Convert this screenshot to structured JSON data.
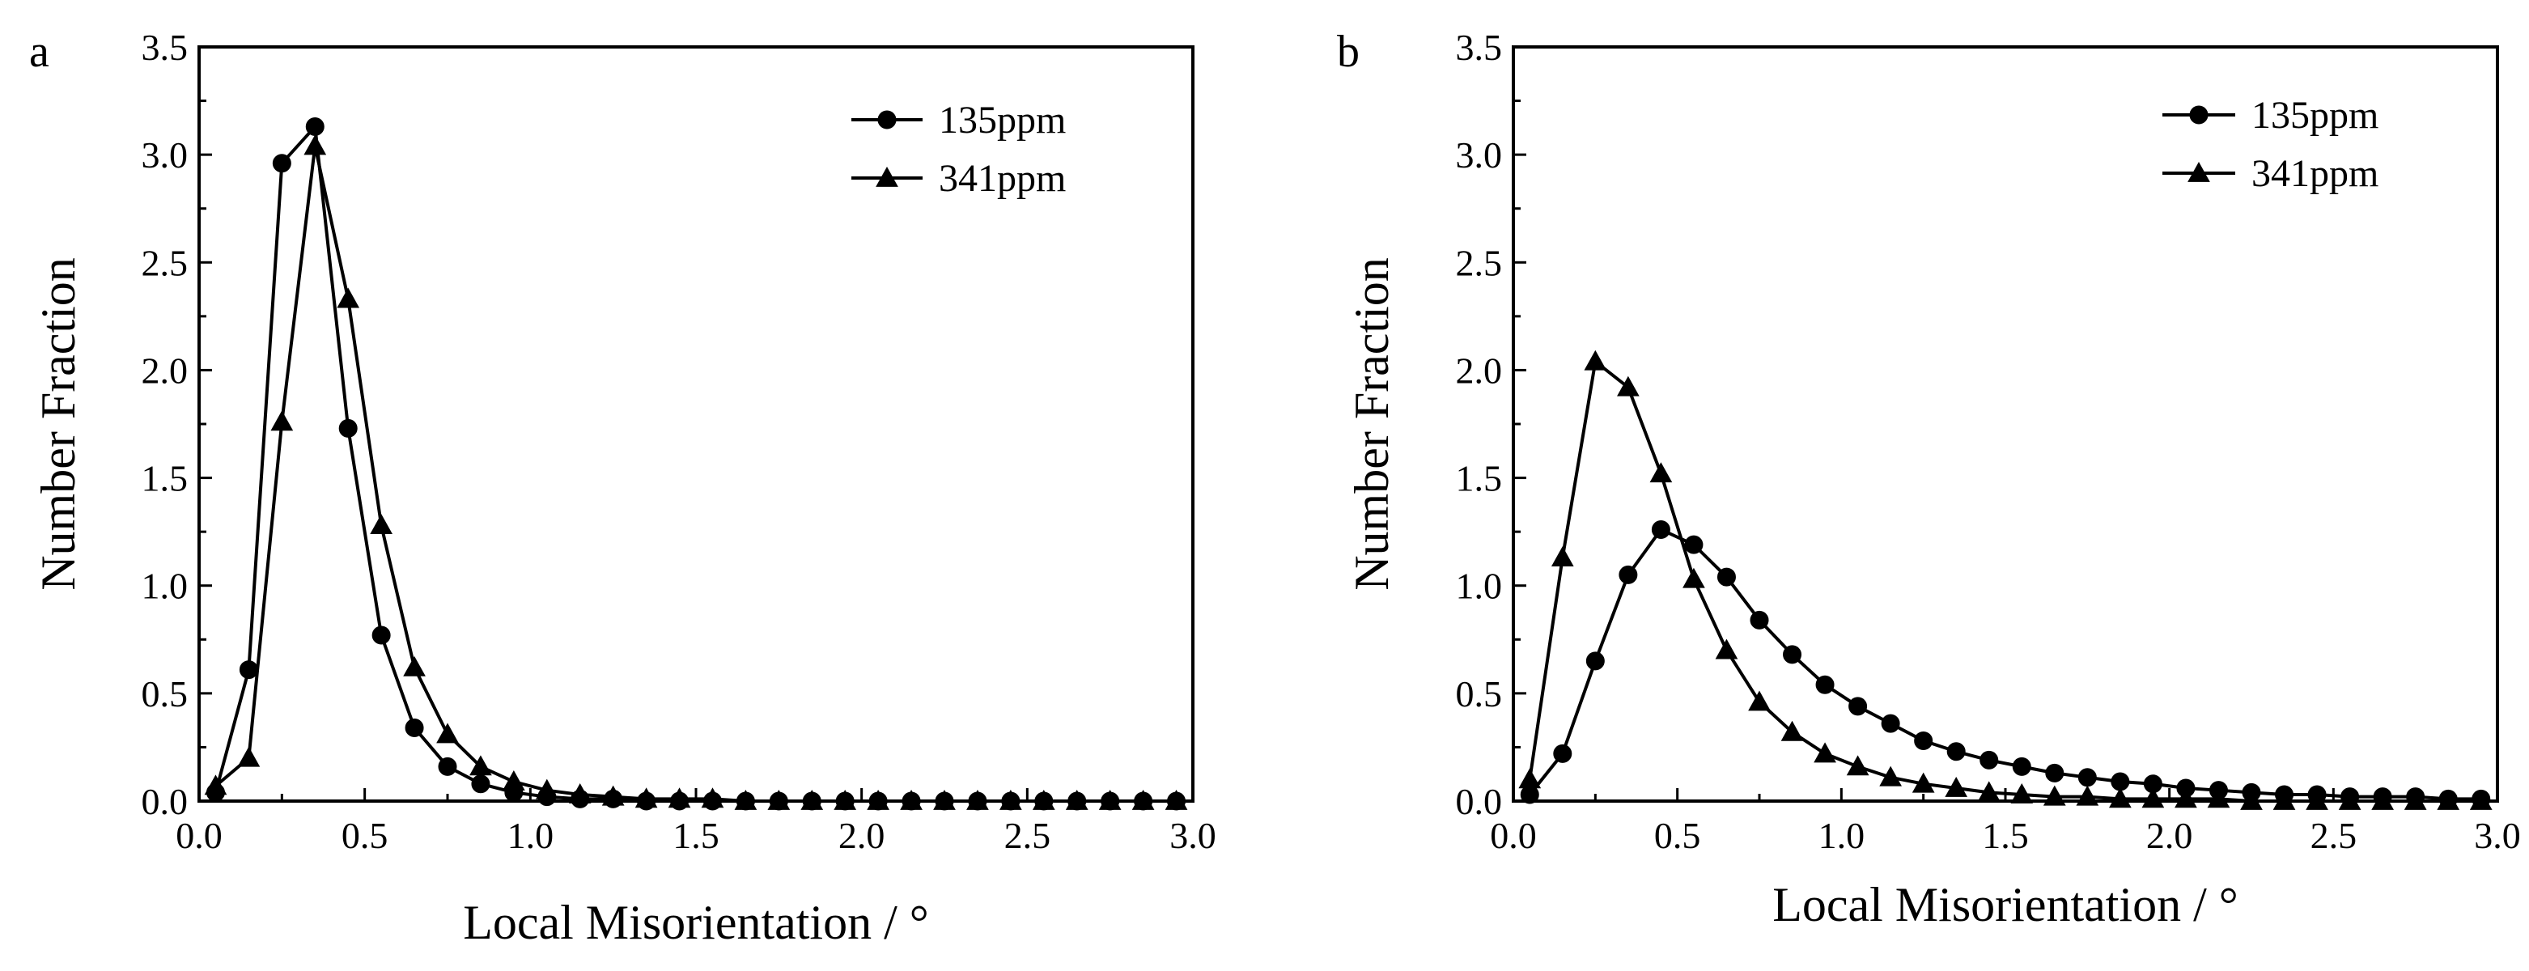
{
  "chart_data": [
    {
      "panel": "a",
      "type": "line",
      "xlabel": "Local Misorientation / °",
      "ylabel": "Number Fraction",
      "xlim": [
        0,
        3.0
      ],
      "ylim": [
        0,
        3.5
      ],
      "xticks": [
        "0.0",
        "0.5",
        "1.0",
        "1.5",
        "2.0",
        "2.5",
        "3.0"
      ],
      "yticks": [
        "0.0",
        "0.5",
        "1.0",
        "1.5",
        "2.0",
        "2.5",
        "3.0",
        "3.5"
      ],
      "legend_position": "top-right",
      "x": [
        0.05,
        0.15,
        0.25,
        0.35,
        0.45,
        0.55,
        0.65,
        0.75,
        0.85,
        0.95,
        1.05,
        1.15,
        1.25,
        1.35,
        1.45,
        1.55,
        1.65,
        1.75,
        1.85,
        1.95,
        2.05,
        2.15,
        2.25,
        2.35,
        2.45,
        2.55,
        2.65,
        2.75,
        2.85,
        2.95
      ],
      "series": [
        {
          "name": "135ppm",
          "marker": "circle",
          "values": [
            0.04,
            0.61,
            2.96,
            3.13,
            1.73,
            0.77,
            0.34,
            0.16,
            0.08,
            0.04,
            0.02,
            0.01,
            0.01,
            0.0,
            0.0,
            0.0,
            0.0,
            0.0,
            0.0,
            0.0,
            0.0,
            0.0,
            0.0,
            0.0,
            0.0,
            0.0,
            0.0,
            0.0,
            0.0,
            0.0
          ]
        },
        {
          "name": "341ppm",
          "marker": "triangle",
          "values": [
            0.07,
            0.2,
            1.76,
            3.04,
            2.33,
            1.28,
            0.62,
            0.31,
            0.16,
            0.09,
            0.05,
            0.03,
            0.02,
            0.01,
            0.01,
            0.01,
            0.0,
            0.0,
            0.0,
            0.0,
            0.0,
            0.0,
            0.0,
            0.0,
            0.0,
            0.0,
            0.0,
            0.0,
            0.0,
            0.0
          ]
        }
      ]
    },
    {
      "panel": "b",
      "type": "line",
      "xlabel": "Local Misorientation / °",
      "ylabel": "Number Fraction",
      "xlim": [
        0,
        3.0
      ],
      "ylim": [
        0,
        3.5
      ],
      "xticks": [
        "0.0",
        "0.5",
        "1.0",
        "1.5",
        "2.0",
        "2.5",
        "3.0"
      ],
      "yticks": [
        "0.0",
        "0.5",
        "1.0",
        "1.5",
        "2.0",
        "2.5",
        "3.0",
        "3.5"
      ],
      "legend_position": "top-right",
      "x": [
        0.05,
        0.15,
        0.25,
        0.35,
        0.45,
        0.55,
        0.65,
        0.75,
        0.85,
        0.95,
        1.05,
        1.15,
        1.25,
        1.35,
        1.45,
        1.55,
        1.65,
        1.75,
        1.85,
        1.95,
        2.05,
        2.15,
        2.25,
        2.35,
        2.45,
        2.55,
        2.65,
        2.75,
        2.85,
        2.95
      ],
      "series": [
        {
          "name": "135ppm",
          "marker": "circle",
          "values": [
            0.03,
            0.22,
            0.65,
            1.05,
            1.26,
            1.19,
            1.04,
            0.84,
            0.68,
            0.54,
            0.44,
            0.36,
            0.28,
            0.23,
            0.19,
            0.16,
            0.13,
            0.11,
            0.09,
            0.08,
            0.06,
            0.05,
            0.04,
            0.03,
            0.03,
            0.02,
            0.02,
            0.02,
            0.01,
            0.01
          ]
        },
        {
          "name": "341ppm",
          "marker": "triangle",
          "values": [
            0.1,
            1.13,
            2.04,
            1.92,
            1.52,
            1.03,
            0.7,
            0.46,
            0.32,
            0.22,
            0.16,
            0.11,
            0.08,
            0.06,
            0.04,
            0.03,
            0.02,
            0.02,
            0.01,
            0.01,
            0.01,
            0.01,
            0.0,
            0.0,
            0.0,
            0.0,
            0.0,
            0.0,
            0.0,
            0.0
          ]
        }
      ]
    }
  ]
}
